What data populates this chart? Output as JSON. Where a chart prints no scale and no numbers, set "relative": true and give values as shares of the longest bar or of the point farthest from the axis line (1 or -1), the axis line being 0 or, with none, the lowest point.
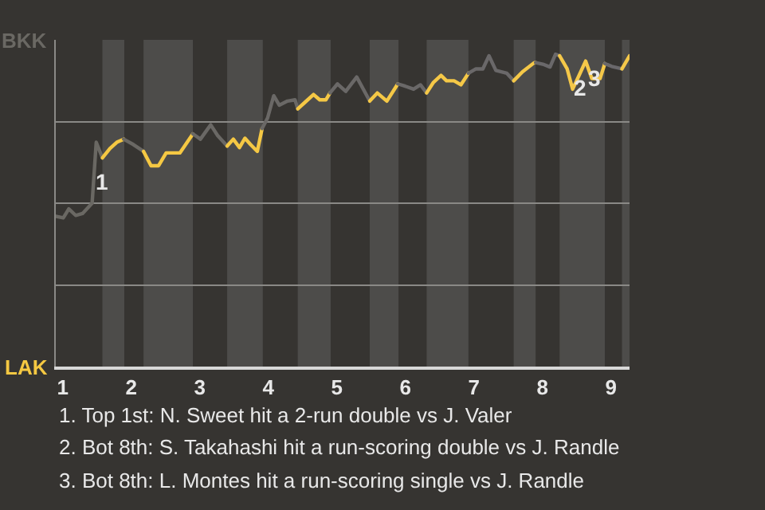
{
  "chart_data": {
    "type": "line",
    "relative": true,
    "series": [
      {
        "name": "BKK",
        "color": "#6a6863",
        "x": [
          0.9,
          1.01,
          1.09,
          1.19,
          1.29,
          1.43,
          1.49,
          1.58
        ],
        "values": [
          0.481,
          0.476,
          0.505,
          0.484,
          0.49,
          0.523,
          0.718,
          0.668
        ]
      },
      {
        "name": "LAK",
        "color": "#f5c842",
        "x": [
          1.58,
          1.69,
          1.79,
          1.89
        ],
        "values": [
          0.668,
          0.698,
          0.718,
          0.728
        ]
      },
      {
        "color": "#6a6864",
        "x": [
          1.89,
          2.03,
          2.18
        ],
        "values": [
          0.728,
          0.711,
          0.689
        ]
      },
      {
        "color": "#f5c843",
        "x": [
          2.18,
          2.29,
          2.4,
          2.51,
          2.71,
          2.9
        ],
        "values": [
          0.689,
          0.643,
          0.643,
          0.684,
          0.684,
          0.745
        ]
      },
      {
        "color": "#6a6865",
        "x": [
          2.9,
          3.01,
          3.16,
          3.26,
          3.4
        ],
        "values": [
          0.745,
          0.728,
          0.774,
          0.74,
          0.706
        ]
      },
      {
        "color": "#f5c844",
        "x": [
          3.4,
          3.49,
          3.58,
          3.66,
          3.74,
          3.84,
          3.91
        ],
        "values": [
          0.706,
          0.728,
          0.701,
          0.731,
          0.711,
          0.689,
          0.762
        ]
      },
      {
        "color": "#6a6866",
        "x": [
          3.91,
          3.99,
          4.08,
          4.16,
          4.28,
          4.39,
          4.43
        ],
        "values": [
          0.762,
          0.796,
          0.867,
          0.837,
          0.85,
          0.854,
          0.825
        ]
      },
      {
        "color": "#f5c845",
        "x": [
          4.43,
          4.54,
          4.66,
          4.75,
          4.84,
          4.9
        ],
        "values": [
          0.825,
          0.847,
          0.871,
          0.854,
          0.854,
          0.876
        ]
      },
      {
        "color": "#6a6867",
        "x": [
          4.9,
          5.01,
          5.13,
          5.29,
          5.48
        ],
        "values": [
          0.876,
          0.905,
          0.881,
          0.927,
          0.85
        ]
      },
      {
        "color": "#f5c846",
        "x": [
          5.48,
          5.59,
          5.73,
          5.89
        ],
        "values": [
          0.85,
          0.876,
          0.85,
          0.905
        ]
      },
      {
        "color": "#6a6868",
        "x": [
          5.89,
          5.98,
          6.12,
          6.22,
          6.31
        ],
        "values": [
          0.905,
          0.899,
          0.888,
          0.902,
          0.876
        ]
      },
      {
        "color": "#f5c847",
        "x": [
          6.31,
          6.41,
          6.52,
          6.6,
          6.71,
          6.81,
          6.92
        ],
        "values": [
          0.876,
          0.91,
          0.932,
          0.915,
          0.915,
          0.902,
          0.939
        ]
      },
      {
        "color": "#6a6869",
        "x": [
          6.92,
          7.03,
          7.13,
          7.22,
          7.32,
          7.48,
          7.58
        ],
        "values": [
          0.939,
          0.953,
          0.953,
          0.995,
          0.948,
          0.939,
          0.915
        ]
      },
      {
        "color": "#f5c848",
        "x": [
          7.58,
          7.71,
          7.88,
          7.9
        ],
        "values": [
          0.915,
          0.944,
          0.973,
          0.973
        ]
      },
      {
        "color": "#6a686a",
        "x": [
          7.9,
          8.02,
          8.11,
          8.19,
          8.25
        ],
        "values": [
          0.973,
          0.967,
          0.959,
          1,
          0.995
        ]
      },
      {
        "color": "#f5c849",
        "x": [
          8.25,
          8.36,
          8.44,
          8.54,
          8.63,
          8.72,
          8.84,
          8.91
        ],
        "values": [
          0.995,
          0.953,
          0.888,
          0.935,
          0.978,
          0.922,
          0.922,
          0.97
        ]
      },
      {
        "color": "#6a686b",
        "x": [
          8.91,
          9.01,
          9.16
        ],
        "values": [
          0.97,
          0.961,
          0.953
        ]
      },
      {
        "color": "#f5c84a",
        "x": [
          9.16,
          9.27
        ],
        "values": [
          0.953,
          0.995
        ]
      }
    ],
    "xlim": [
      0.9,
      9.27
    ],
    "xticks": [
      1,
      2,
      3,
      4,
      5,
      6,
      7,
      8,
      9
    ],
    "grid": "y",
    "legend": false,
    "marker": "none",
    "line_style": "solid",
    "bands": [
      {
        "axis": "x",
        "from": 1.58,
        "to": 1.9,
        "color": "#4d4c4a"
      },
      {
        "axis": "x",
        "from": 2.18,
        "to": 2.9,
        "color": "#4d4c4a"
      },
      {
        "axis": "x",
        "from": 3.4,
        "to": 3.92,
        "color": "#4d4c4a"
      },
      {
        "axis": "x",
        "from": 4.43,
        "to": 4.91,
        "color": "#4d4c4a"
      },
      {
        "axis": "x",
        "from": 5.48,
        "to": 5.9,
        "color": "#4d4c4a"
      },
      {
        "axis": "x",
        "from": 6.31,
        "to": 6.92,
        "color": "#4d4c4a"
      },
      {
        "axis": "x",
        "from": 7.58,
        "to": 7.9,
        "color": "#4d4c4a"
      },
      {
        "axis": "x",
        "from": 8.25,
        "to": 8.91,
        "color": "#4d4c4a"
      },
      {
        "axis": "x",
        "from": 9.16,
        "to": 9.27,
        "color": "#4d4c4a"
      }
    ],
    "annotations": [
      {
        "text": "1",
        "x": 1.58,
        "y": 0.592
      },
      {
        "text": "2",
        "x": 8.55,
        "y": 0.893
      },
      {
        "text": "3",
        "x": 8.76,
        "y": 0.925
      },
      "1. Top 1st: N. Sweet hit a 2-run double vs J. Valer",
      "2. Bot 8th: S. Takahashi hit a run-scoring double vs J. Randle",
      "3. Bot 8th: L. Montes hit a run-scoring single vs J. Randle"
    ]
  }
}
